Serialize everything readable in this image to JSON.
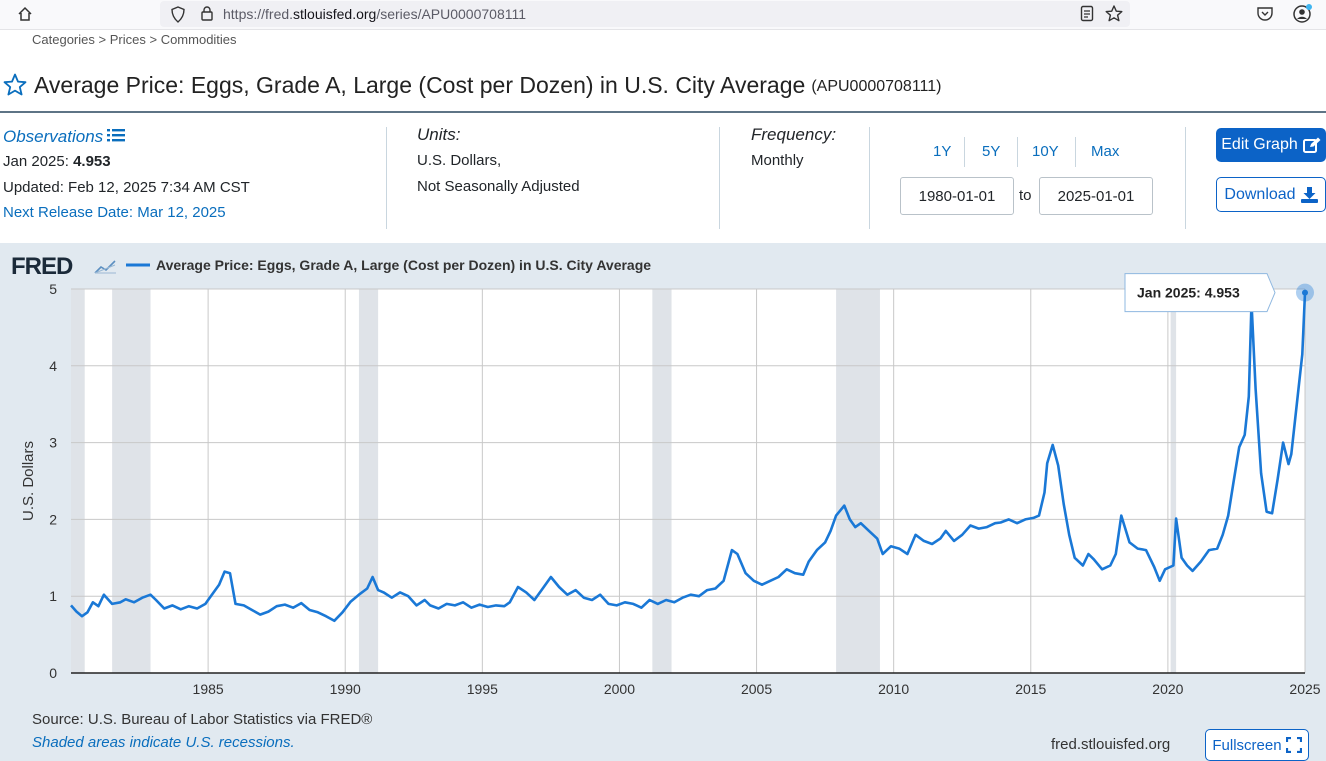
{
  "browser": {
    "url_prefix": "https://fred.",
    "url_host": "stlouisfed.org",
    "url_path": "/series/APU0000708111"
  },
  "breadcrumb": {
    "items": [
      "Categories",
      "Prices",
      "Commodities"
    ],
    "separator": ">"
  },
  "header": {
    "title": "Average Price: Eggs, Grade A, Large (Cost per Dozen) in U.S. City Average",
    "series_id": "(APU0000708111)"
  },
  "observations": {
    "label": "Observations",
    "latest_label": "Jan 2025:",
    "latest_value": "4.953",
    "updated": "Updated: Feb 12, 2025 7:34 AM CST",
    "next_release": "Next Release Date: Mar 12, 2025"
  },
  "units": {
    "label": "Units:",
    "line1": "U.S. Dollars,",
    "line2": "Not Seasonally Adjusted"
  },
  "frequency": {
    "label": "Frequency:",
    "value": "Monthly"
  },
  "range": {
    "buttons": [
      "1Y",
      "5Y",
      "10Y",
      "Max"
    ],
    "start": "1980-01-01",
    "to_label": "to",
    "end": "2025-01-01"
  },
  "actions": {
    "edit_label": "Edit Graph",
    "download_label": "Download",
    "fullscreen_label": "Fullscreen"
  },
  "chart_footer": {
    "source": "Source: U.S. Bureau of Labor Statistics via FRED®",
    "recession_note": "Shaded areas indicate U.S. recessions.",
    "site": "fred.stlouisfed.org"
  },
  "colors": {
    "line": "#1a78d6",
    "recession": "#dfe3e8",
    "panel": "#e1e9f0",
    "accent": "#0c63c7"
  },
  "chart_data": {
    "type": "line",
    "logo": "FRED",
    "title": "Average Price: Eggs, Grade A, Large (Cost per Dozen) in U.S. City Average",
    "xlabel": "",
    "ylabel": "U.S. Dollars",
    "xlim": [
      1980.0,
      2025.0
    ],
    "ylim": [
      0,
      5
    ],
    "x_ticks": [
      1985,
      1990,
      1995,
      2000,
      2005,
      2010,
      2015,
      2020,
      2025
    ],
    "y_ticks": [
      0,
      1,
      2,
      3,
      4,
      5
    ],
    "grid": true,
    "legend": "top-left",
    "recessions": [
      [
        1980.0,
        1980.5
      ],
      [
        1981.5,
        1982.9
      ],
      [
        1990.5,
        1991.2
      ],
      [
        2001.2,
        2001.9
      ],
      [
        2007.9,
        2009.5
      ],
      [
        2020.1,
        2020.3
      ]
    ],
    "series": [
      {
        "name": "Average Price: Eggs, Grade A, Large (Cost per Dozen) in U.S. City Average",
        "points": [
          [
            1980.0,
            0.88
          ],
          [
            1980.2,
            0.8
          ],
          [
            1980.4,
            0.74
          ],
          [
            1980.6,
            0.79
          ],
          [
            1980.8,
            0.92
          ],
          [
            1981.0,
            0.87
          ],
          [
            1981.2,
            1.02
          ],
          [
            1981.5,
            0.9
          ],
          [
            1981.8,
            0.92
          ],
          [
            1982.0,
            0.96
          ],
          [
            1982.3,
            0.92
          ],
          [
            1982.6,
            0.98
          ],
          [
            1982.9,
            1.02
          ],
          [
            1983.1,
            0.95
          ],
          [
            1983.4,
            0.84
          ],
          [
            1983.7,
            0.88
          ],
          [
            1984.0,
            0.83
          ],
          [
            1984.3,
            0.87
          ],
          [
            1984.6,
            0.84
          ],
          [
            1984.9,
            0.9
          ],
          [
            1985.0,
            0.95
          ],
          [
            1985.2,
            1.05
          ],
          [
            1985.4,
            1.15
          ],
          [
            1985.6,
            1.32
          ],
          [
            1985.8,
            1.3
          ],
          [
            1986.0,
            0.9
          ],
          [
            1986.3,
            0.88
          ],
          [
            1986.6,
            0.82
          ],
          [
            1986.9,
            0.76
          ],
          [
            1987.2,
            0.8
          ],
          [
            1987.5,
            0.87
          ],
          [
            1987.8,
            0.89
          ],
          [
            1988.1,
            0.85
          ],
          [
            1988.4,
            0.91
          ],
          [
            1988.7,
            0.82
          ],
          [
            1989.0,
            0.79
          ],
          [
            1989.3,
            0.74
          ],
          [
            1989.6,
            0.68
          ],
          [
            1989.9,
            0.79
          ],
          [
            1990.2,
            0.93
          ],
          [
            1990.5,
            1.02
          ],
          [
            1990.8,
            1.1
          ],
          [
            1991.0,
            1.25
          ],
          [
            1991.2,
            1.08
          ],
          [
            1991.4,
            1.05
          ],
          [
            1991.7,
            0.98
          ],
          [
            1992.0,
            1.05
          ],
          [
            1992.3,
            1.0
          ],
          [
            1992.6,
            0.88
          ],
          [
            1992.9,
            0.95
          ],
          [
            1993.1,
            0.88
          ],
          [
            1993.4,
            0.84
          ],
          [
            1993.7,
            0.9
          ],
          [
            1994.0,
            0.88
          ],
          [
            1994.3,
            0.92
          ],
          [
            1994.6,
            0.85
          ],
          [
            1994.9,
            0.89
          ],
          [
            1995.2,
            0.86
          ],
          [
            1995.5,
            0.88
          ],
          [
            1995.8,
            0.87
          ],
          [
            1996.0,
            0.92
          ],
          [
            1996.3,
            1.12
          ],
          [
            1996.6,
            1.05
          ],
          [
            1996.9,
            0.95
          ],
          [
            1997.2,
            1.1
          ],
          [
            1997.5,
            1.25
          ],
          [
            1997.8,
            1.12
          ],
          [
            1998.1,
            1.02
          ],
          [
            1998.4,
            1.08
          ],
          [
            1998.7,
            0.98
          ],
          [
            1999.0,
            0.95
          ],
          [
            1999.3,
            1.02
          ],
          [
            1999.6,
            0.9
          ],
          [
            1999.9,
            0.88
          ],
          [
            2000.2,
            0.92
          ],
          [
            2000.5,
            0.9
          ],
          [
            2000.8,
            0.85
          ],
          [
            2001.1,
            0.95
          ],
          [
            2001.4,
            0.9
          ],
          [
            2001.7,
            0.95
          ],
          [
            2002.0,
            0.92
          ],
          [
            2002.3,
            0.98
          ],
          [
            2002.6,
            1.02
          ],
          [
            2002.9,
            1.0
          ],
          [
            2003.2,
            1.08
          ],
          [
            2003.5,
            1.1
          ],
          [
            2003.8,
            1.2
          ],
          [
            2004.1,
            1.6
          ],
          [
            2004.3,
            1.55
          ],
          [
            2004.6,
            1.3
          ],
          [
            2004.9,
            1.2
          ],
          [
            2005.2,
            1.15
          ],
          [
            2005.5,
            1.2
          ],
          [
            2005.8,
            1.25
          ],
          [
            2006.1,
            1.35
          ],
          [
            2006.4,
            1.3
          ],
          [
            2006.7,
            1.28
          ],
          [
            2006.9,
            1.45
          ],
          [
            2007.2,
            1.6
          ],
          [
            2007.5,
            1.7
          ],
          [
            2007.7,
            1.85
          ],
          [
            2007.9,
            2.05
          ],
          [
            2008.2,
            2.18
          ],
          [
            2008.4,
            2.0
          ],
          [
            2008.6,
            1.9
          ],
          [
            2008.8,
            1.95
          ],
          [
            2009.1,
            1.85
          ],
          [
            2009.4,
            1.75
          ],
          [
            2009.6,
            1.55
          ],
          [
            2009.9,
            1.65
          ],
          [
            2010.2,
            1.62
          ],
          [
            2010.5,
            1.55
          ],
          [
            2010.8,
            1.8
          ],
          [
            2011.1,
            1.72
          ],
          [
            2011.4,
            1.68
          ],
          [
            2011.7,
            1.75
          ],
          [
            2011.9,
            1.85
          ],
          [
            2012.2,
            1.72
          ],
          [
            2012.5,
            1.8
          ],
          [
            2012.8,
            1.92
          ],
          [
            2013.1,
            1.88
          ],
          [
            2013.4,
            1.9
          ],
          [
            2013.7,
            1.95
          ],
          [
            2013.9,
            1.96
          ],
          [
            2014.2,
            2.0
          ],
          [
            2014.5,
            1.95
          ],
          [
            2014.8,
            2.0
          ],
          [
            2015.1,
            2.02
          ],
          [
            2015.3,
            2.05
          ],
          [
            2015.5,
            2.35
          ],
          [
            2015.6,
            2.73
          ],
          [
            2015.8,
            2.97
          ],
          [
            2016.0,
            2.7
          ],
          [
            2016.2,
            2.2
          ],
          [
            2016.4,
            1.8
          ],
          [
            2016.6,
            1.5
          ],
          [
            2016.9,
            1.4
          ],
          [
            2017.1,
            1.55
          ],
          [
            2017.3,
            1.48
          ],
          [
            2017.6,
            1.35
          ],
          [
            2017.9,
            1.4
          ],
          [
            2018.1,
            1.55
          ],
          [
            2018.3,
            2.05
          ],
          [
            2018.6,
            1.7
          ],
          [
            2018.9,
            1.62
          ],
          [
            2019.2,
            1.6
          ],
          [
            2019.5,
            1.38
          ],
          [
            2019.7,
            1.2
          ],
          [
            2019.9,
            1.35
          ],
          [
            2020.2,
            1.4
          ],
          [
            2020.3,
            2.01
          ],
          [
            2020.5,
            1.5
          ],
          [
            2020.7,
            1.4
          ],
          [
            2020.9,
            1.33
          ],
          [
            2021.2,
            1.45
          ],
          [
            2021.5,
            1.6
          ],
          [
            2021.8,
            1.62
          ],
          [
            2022.0,
            1.8
          ],
          [
            2022.2,
            2.05
          ],
          [
            2022.4,
            2.5
          ],
          [
            2022.6,
            2.94
          ],
          [
            2022.8,
            3.1
          ],
          [
            2022.95,
            3.6
          ],
          [
            2023.05,
            4.82
          ],
          [
            2023.2,
            3.7
          ],
          [
            2023.4,
            2.6
          ],
          [
            2023.6,
            2.1
          ],
          [
            2023.8,
            2.08
          ],
          [
            2024.0,
            2.52
          ],
          [
            2024.2,
            3.0
          ],
          [
            2024.4,
            2.72
          ],
          [
            2024.5,
            2.85
          ],
          [
            2024.7,
            3.5
          ],
          [
            2024.8,
            3.82
          ],
          [
            2024.9,
            4.15
          ],
          [
            2025.0,
            4.953
          ]
        ]
      }
    ],
    "tooltip": {
      "label": "Jan 2025:",
      "value": "4.953"
    }
  }
}
